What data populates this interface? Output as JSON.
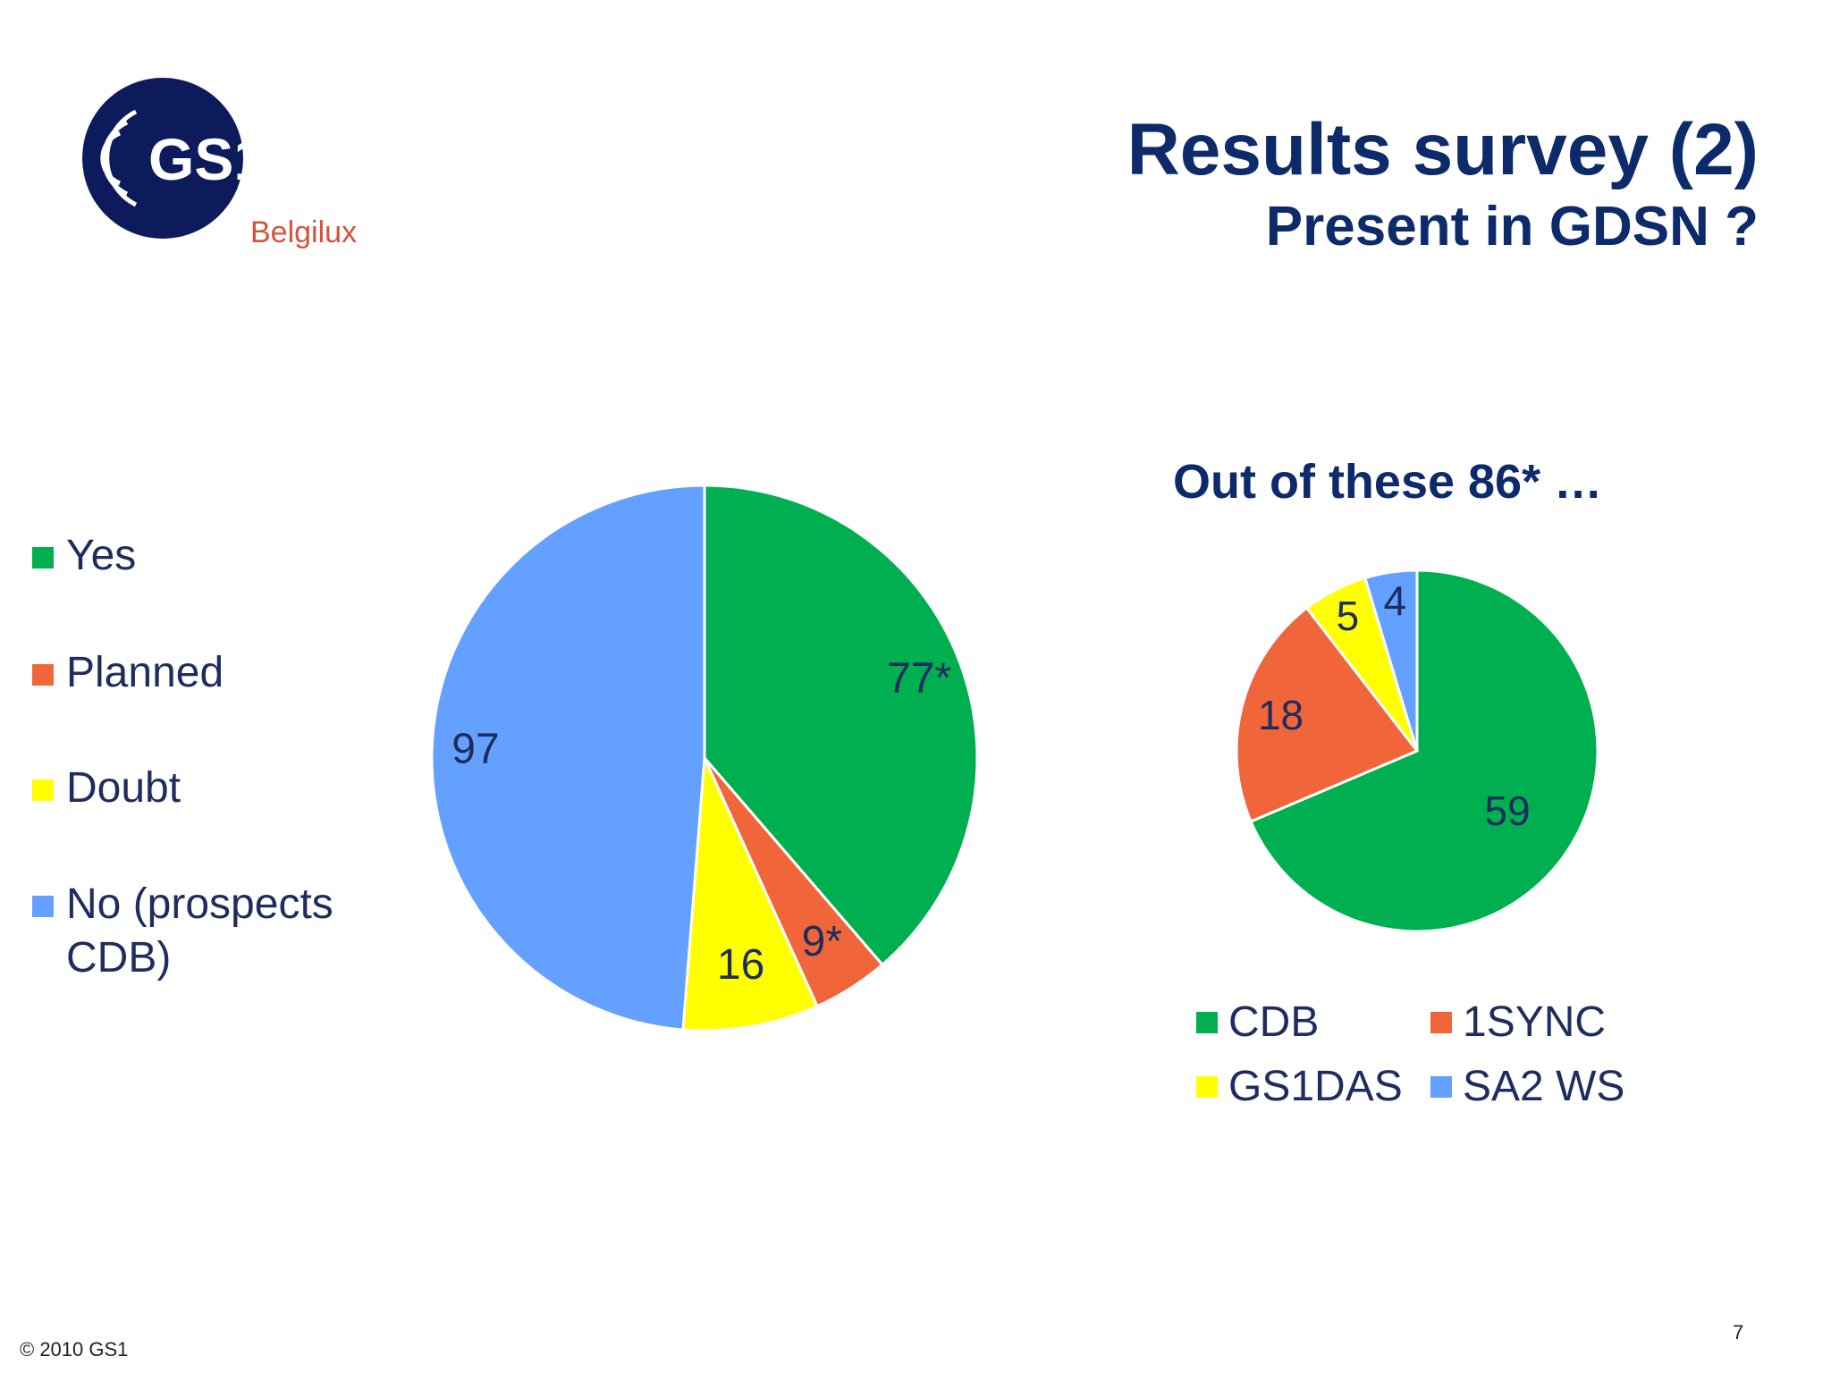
{
  "header": {
    "title": "Results survey (2)",
    "subtitle": "Present in GDSN ?"
  },
  "logo": {
    "text": "GS1",
    "subtext": "Belgilux",
    "brand_color": "#0d1a5c",
    "accent_color": "#d4533a"
  },
  "chart_data": [
    {
      "type": "pie",
      "title": "",
      "categories": [
        "Yes",
        "Planned",
        "Doubt",
        "No (prospects\nCDB)"
      ],
      "values": [
        77,
        9,
        16,
        97
      ],
      "data_labels": [
        "77*",
        "9*",
        "16",
        "97"
      ],
      "colors": [
        "#00b050",
        "#f0663a",
        "#ffff00",
        "#64a0ff"
      ],
      "legend_placement": "left"
    },
    {
      "type": "pie",
      "title": "Out of these 86* …",
      "categories": [
        "CDB",
        "1SYNC",
        "GS1DAS",
        "SA2 WS"
      ],
      "values": [
        59,
        18,
        5,
        4
      ],
      "data_labels": [
        "59",
        "18",
        "5",
        "4"
      ],
      "colors": [
        "#00b050",
        "#f0663a",
        "#ffff00",
        "#64a0ff"
      ],
      "legend_placement": "bottom"
    }
  ],
  "footer": {
    "copyright": "© 2010 GS1",
    "page_number": "7"
  }
}
